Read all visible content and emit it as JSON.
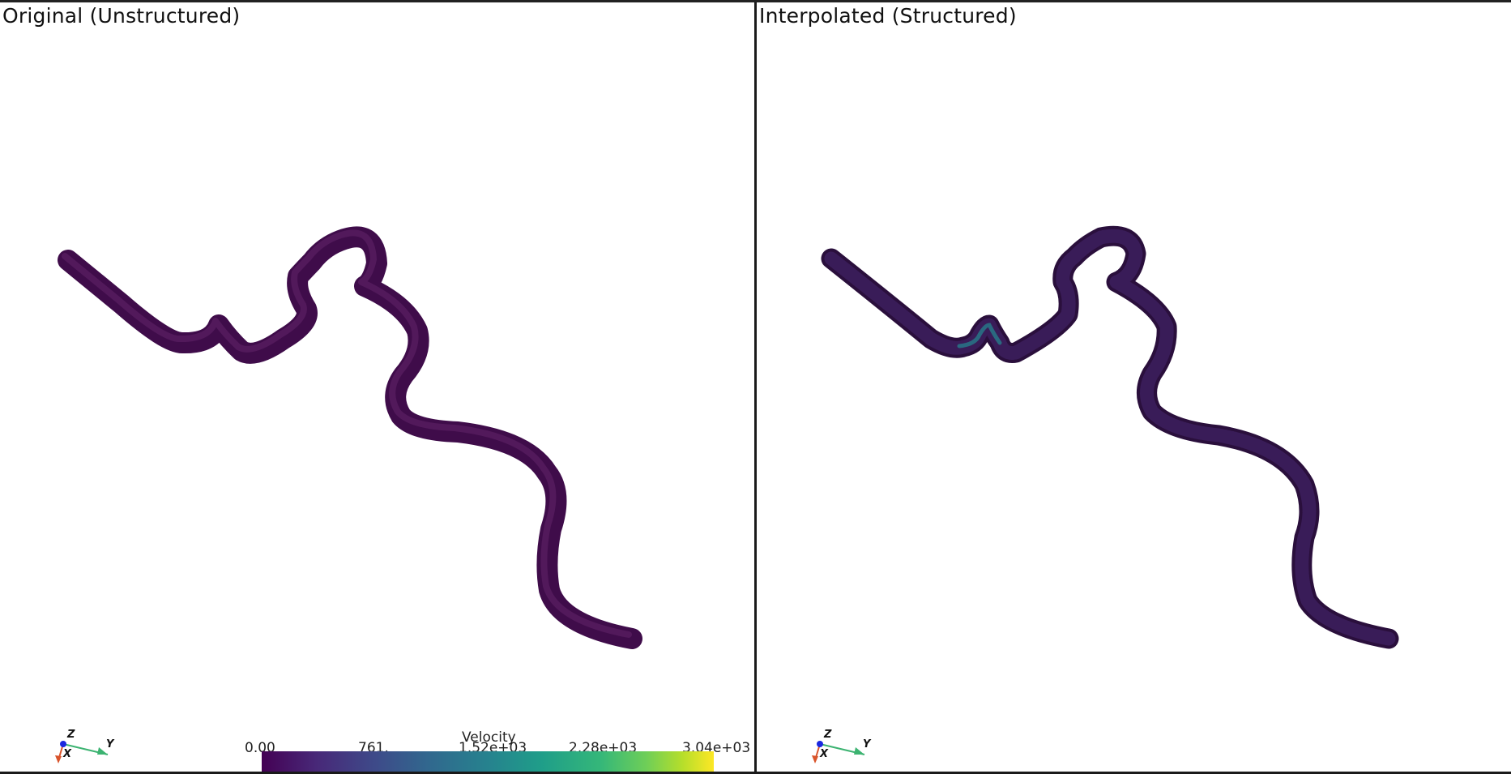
{
  "views": {
    "left_title": "Original (Unstructured)",
    "right_title": "Interpolated (Structured)"
  },
  "axes": {
    "z_label": "Z",
    "x_label": "X",
    "y_label": "Y"
  },
  "colorbar": {
    "title": "Velocity",
    "ticks": [
      "0.00",
      "761.",
      "1.52e+03",
      "2.28e+03",
      "3.04e+03"
    ],
    "colormap": "viridis",
    "min_color": "#440154",
    "max_color": "#fde725"
  },
  "colors": {
    "vessel_original": "#3f0c4a",
    "vessel_interpolated": "#2a0f3c",
    "axis_x": "#d9542b",
    "axis_y": "#3cb371",
    "axis_z": "#1a28e0"
  }
}
